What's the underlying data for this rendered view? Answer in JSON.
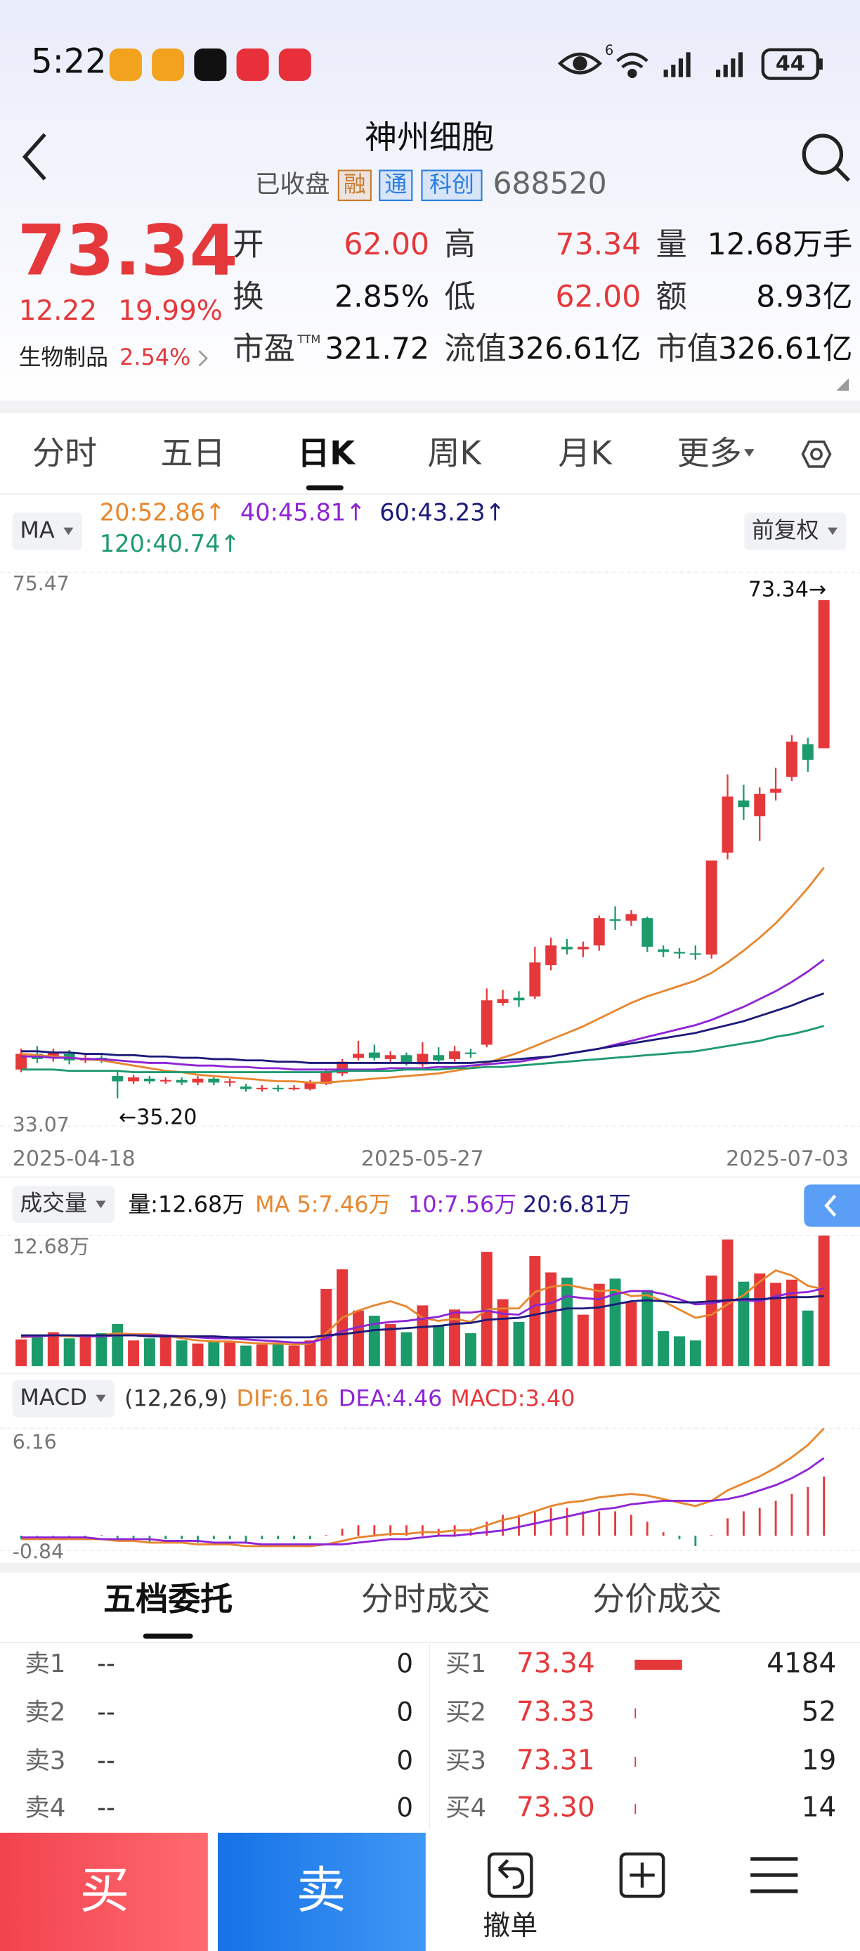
{
  "status_bar": {
    "time": "5:22",
    "network": "6",
    "battery": "44"
  },
  "header": {
    "title": "神州细胞",
    "status": "已收盘",
    "tags": [
      "融",
      "通",
      "科创"
    ],
    "code": "688520"
  },
  "quote": {
    "price": "73.34",
    "change": "12.22",
    "change_pct": "19.99%",
    "sector": "生物制品",
    "sector_pct": "2.54%",
    "fields": [
      {
        "label": "开",
        "value": "62.00",
        "color": "#e5383b"
      },
      {
        "label": "高",
        "value": "73.34",
        "color": "#e5383b"
      },
      {
        "label": "量",
        "value": "12.68万手",
        "color": "#111111"
      },
      {
        "label": "换",
        "value": "2.85%",
        "color": "#111111"
      },
      {
        "label": "低",
        "value": "62.00",
        "color": "#e5383b"
      },
      {
        "label": "额",
        "value": "8.93亿",
        "color": "#111111"
      },
      {
        "label": "市盈",
        "sup": "TTM",
        "value": "321.72",
        "color": "#111111"
      },
      {
        "label": "流值",
        "value": "326.61亿",
        "color": "#111111"
      },
      {
        "label": "市值",
        "value": "326.61亿",
        "color": "#111111"
      }
    ]
  },
  "tabs": [
    "分时",
    "五日",
    "日K",
    "周K",
    "月K",
    "更多"
  ],
  "kline": {
    "type": "candlestick",
    "selector": "MA",
    "adjust": "前复权",
    "categories": [
      "2025-04-18",
      null,
      null,
      null,
      null,
      null,
      null,
      null,
      null,
      null,
      null,
      null,
      null,
      null,
      null,
      null,
      null,
      null,
      null,
      null,
      null,
      null,
      null,
      null,
      null,
      "2025-05-27",
      null,
      null,
      null,
      null,
      null,
      null,
      null,
      null,
      null,
      null,
      null,
      null,
      null,
      null,
      null,
      null,
      null,
      null,
      null,
      null,
      null,
      null,
      null,
      null,
      "2025-07-03"
    ],
    "open": [
      37.4,
      38.6,
      38.4,
      38.6,
      38.1,
      38.3,
      36.9,
      36.5,
      36.7,
      36.5,
      36.6,
      36.4,
      36.7,
      36.4,
      36.1,
      35.9,
      36.0,
      35.9,
      35.9,
      36.3,
      37.1,
      38.3,
      38.7,
      38.2,
      38.5,
      37.8,
      38.5,
      38.2,
      38.7,
      39.3,
      42.5,
      42.9,
      43.0,
      45.4,
      46.8,
      46.6,
      46.9,
      48.9,
      48.8,
      49.0,
      46.6,
      46.4,
      46.3,
      46.2,
      54.0,
      58.0,
      56.8,
      58.6,
      59.8,
      62.3,
      62.0
    ],
    "close": [
      38.6,
      38.2,
      38.7,
      38.1,
      38.3,
      38.2,
      36.5,
      36.8,
      36.5,
      36.6,
      36.4,
      36.7,
      36.4,
      36.5,
      35.9,
      36.0,
      35.9,
      36.0,
      36.4,
      37.2,
      38.0,
      38.6,
      38.3,
      38.5,
      37.9,
      38.6,
      38.1,
      38.8,
      38.6,
      42.7,
      42.8,
      42.7,
      45.6,
      46.9,
      46.6,
      46.8,
      49.0,
      48.8,
      49.3,
      46.8,
      46.4,
      46.3,
      46.2,
      53.4,
      58.3,
      57.5,
      58.5,
      58.9,
      62.5,
      61.12,
      73.34
    ],
    "high": [
      39.0,
      39.2,
      39.0,
      38.9,
      38.6,
      38.5,
      37.3,
      37.0,
      36.9,
      36.8,
      36.8,
      36.9,
      36.8,
      36.7,
      36.3,
      36.2,
      36.2,
      36.2,
      36.6,
      37.4,
      38.2,
      39.6,
      39.3,
      38.8,
      38.7,
      39.5,
      39.1,
      39.2,
      39.0,
      43.6,
      43.5,
      43.4,
      46.8,
      47.5,
      47.4,
      47.2,
      49.2,
      49.9,
      49.6,
      49.1,
      46.9,
      46.7,
      46.9,
      53.4,
      60.0,
      59.2,
      59.0,
      60.5,
      63.0,
      62.8,
      73.34
    ],
    "low": [
      37.2,
      37.9,
      38.0,
      37.8,
      37.9,
      37.9,
      35.2,
      36.3,
      36.3,
      36.3,
      36.2,
      36.2,
      36.2,
      36.1,
      35.7,
      35.7,
      35.7,
      35.8,
      35.8,
      36.2,
      36.9,
      38.1,
      38.1,
      37.9,
      37.7,
      37.6,
      37.9,
      38.0,
      38.3,
      39.1,
      42.3,
      42.2,
      42.8,
      45.0,
      46.2,
      46.0,
      46.5,
      48.1,
      48.4,
      46.4,
      46.0,
      45.9,
      45.8,
      45.9,
      53.5,
      56.5,
      54.9,
      58.0,
      59.5,
      60.2,
      62.0
    ],
    "up_color": "#e5383b",
    "down_color": "#1b9a6a",
    "max_label": "73.34→",
    "min_label": "←35.20",
    "ylim": [
      33.07,
      75.47
    ],
    "yticks": [
      75.47,
      33.07
    ],
    "ma": [
      {
        "label": "20:52.86↑",
        "color": "#e8862e",
        "values": [
          38.6,
          38.5,
          38.4,
          38.3,
          38.2,
          38.1,
          37.9,
          37.7,
          37.5,
          37.3,
          37.2,
          37.0,
          36.9,
          36.8,
          36.7,
          36.6,
          36.5,
          36.5,
          36.4,
          36.4,
          36.5,
          36.6,
          36.7,
          36.8,
          36.9,
          37.0,
          37.1,
          37.3,
          37.5,
          37.9,
          38.3,
          38.7,
          39.2,
          39.7,
          40.2,
          40.7,
          41.3,
          41.9,
          42.5,
          43.0,
          43.4,
          43.8,
          44.2,
          44.8,
          45.6,
          46.5,
          47.5,
          48.6,
          49.9,
          51.3,
          52.86
        ]
      },
      {
        "label": "40:45.81↑",
        "color": "#8e24d6",
        "values": [
          38.4,
          38.4,
          38.3,
          38.3,
          38.2,
          38.2,
          38.1,
          38.0,
          37.9,
          37.9,
          37.8,
          37.7,
          37.7,
          37.6,
          37.6,
          37.5,
          37.5,
          37.4,
          37.4,
          37.4,
          37.4,
          37.4,
          37.4,
          37.5,
          37.5,
          37.5,
          37.6,
          37.6,
          37.7,
          37.8,
          37.9,
          38.0,
          38.2,
          38.4,
          38.6,
          38.8,
          39.0,
          39.3,
          39.6,
          39.9,
          40.2,
          40.5,
          40.8,
          41.2,
          41.7,
          42.2,
          42.8,
          43.4,
          44.1,
          44.9,
          45.81
        ]
      },
      {
        "label": "60:43.23↑",
        "color": "#1c1a7a",
        "values": [
          38.8,
          38.8,
          38.7,
          38.7,
          38.6,
          38.6,
          38.5,
          38.5,
          38.4,
          38.4,
          38.3,
          38.3,
          38.2,
          38.2,
          38.1,
          38.1,
          38.0,
          38.0,
          37.9,
          37.9,
          37.9,
          37.9,
          37.9,
          37.9,
          37.9,
          37.9,
          37.9,
          37.9,
          37.9,
          38.0,
          38.1,
          38.2,
          38.3,
          38.4,
          38.6,
          38.8,
          39.0,
          39.2,
          39.4,
          39.6,
          39.8,
          40.0,
          40.2,
          40.5,
          40.8,
          41.1,
          41.5,
          41.9,
          42.3,
          42.8,
          43.23
        ]
      },
      {
        "label": "120:40.74↑",
        "color": "#1e9a6e",
        "values": [
          37.4,
          37.4,
          37.4,
          37.3,
          37.3,
          37.3,
          37.3,
          37.2,
          37.2,
          37.2,
          37.2,
          37.2,
          37.2,
          37.2,
          37.2,
          37.2,
          37.2,
          37.2,
          37.2,
          37.2,
          37.3,
          37.3,
          37.3,
          37.3,
          37.4,
          37.4,
          37.4,
          37.5,
          37.5,
          37.6,
          37.6,
          37.7,
          37.8,
          37.9,
          38.0,
          38.1,
          38.2,
          38.3,
          38.4,
          38.5,
          38.6,
          38.7,
          38.8,
          39.0,
          39.2,
          39.4,
          39.6,
          39.9,
          40.1,
          40.4,
          40.74
        ]
      }
    ]
  },
  "volume": {
    "type": "bar",
    "selector": "成交量",
    "legend": "量:12.68万",
    "values": [
      2.6,
      2.9,
      3.3,
      2.7,
      3.1,
      3.2,
      4.1,
      2.5,
      2.7,
      2.8,
      2.5,
      2.2,
      2.4,
      2.3,
      2.0,
      2.1,
      2.2,
      2.0,
      2.5,
      7.5,
      9.4,
      5.4,
      4.9,
      4.1,
      3.3,
      5.9,
      4.0,
      5.5,
      3.2,
      11.1,
      6.5,
      4.3,
      10.7,
      9.1,
      8.6,
      5.0,
      8.0,
      8.5,
      6.2,
      7.4,
      3.4,
      2.9,
      2.5,
      8.8,
      12.3,
      8.2,
      9.0,
      8.1,
      8.4,
      5.4,
      12.68
    ],
    "ylim": [
      0,
      12.68
    ],
    "yticks": [
      {
        "value": 12.68,
        "label": "12.68万"
      }
    ],
    "ma": [
      {
        "label": "MA 5:7.46万",
        "color": "#e8862e",
        "values": [
          2.8,
          2.9,
          3.0,
          2.9,
          2.9,
          3.0,
          3.2,
          3.1,
          3.1,
          3.0,
          2.7,
          2.5,
          2.4,
          2.4,
          2.3,
          2.2,
          2.2,
          2.1,
          2.2,
          3.2,
          4.7,
          5.4,
          5.9,
          6.3,
          5.8,
          4.7,
          4.4,
          4.6,
          4.3,
          5.5,
          5.6,
          5.6,
          7.2,
          7.7,
          7.9,
          7.6,
          7.3,
          7.4,
          6.8,
          6.9,
          6.3,
          5.5,
          4.7,
          5.0,
          6.0,
          6.9,
          8.2,
          9.3,
          8.8,
          7.8,
          7.46
        ]
      },
      {
        "label": "10:7.56万",
        "color": "#8e24d6",
        "values": [
          2.9,
          2.9,
          3.0,
          3.0,
          2.9,
          2.9,
          3.0,
          3.0,
          3.0,
          3.0,
          2.9,
          2.8,
          2.7,
          2.7,
          2.6,
          2.5,
          2.4,
          2.3,
          2.3,
          2.7,
          3.4,
          3.8,
          4.1,
          4.3,
          4.4,
          4.6,
          4.8,
          5.2,
          5.2,
          5.4,
          5.1,
          5.0,
          5.9,
          6.1,
          6.8,
          6.6,
          6.5,
          7.0,
          7.3,
          7.3,
          7.0,
          6.5,
          6.0,
          6.1,
          6.4,
          6.4,
          6.3,
          6.8,
          7.1,
          7.2,
          7.56
        ]
      },
      {
        "label": "20:6.81万",
        "color": "#1c1a7a",
        "values": [
          3.0,
          3.0,
          3.0,
          3.0,
          3.0,
          3.0,
          3.0,
          3.0,
          2.9,
          2.9,
          2.9,
          2.9,
          2.9,
          2.8,
          2.8,
          2.8,
          2.8,
          2.8,
          2.8,
          3.0,
          3.1,
          3.3,
          3.5,
          3.6,
          3.7,
          3.8,
          3.9,
          4.1,
          4.2,
          4.5,
          4.6,
          4.7,
          5.0,
          5.3,
          5.6,
          5.6,
          5.7,
          6.0,
          6.3,
          6.4,
          6.3,
          6.2,
          6.2,
          6.3,
          6.4,
          6.5,
          6.5,
          6.6,
          6.7,
          6.7,
          6.81
        ]
      }
    ]
  },
  "macd": {
    "type": "macd",
    "selector": "MACD",
    "params": "(12,26,9)",
    "ylim": [
      -0.84,
      6.16
    ],
    "yticks": [
      6.16,
      -0.84
    ],
    "dif": {
      "label": "DIF:6.16",
      "color": "#e8862e",
      "values": [
        -0.2,
        -0.2,
        -0.2,
        -0.2,
        -0.2,
        -0.2,
        -0.3,
        -0.3,
        -0.4,
        -0.4,
        -0.4,
        -0.5,
        -0.5,
        -0.5,
        -0.6,
        -0.6,
        -0.6,
        -0.6,
        -0.6,
        -0.5,
        -0.3,
        -0.1,
        0.0,
        0.1,
        0.1,
        0.2,
        0.2,
        0.3,
        0.3,
        0.6,
        0.9,
        1.1,
        1.4,
        1.7,
        1.9,
        2.0,
        2.2,
        2.3,
        2.4,
        2.3,
        2.1,
        1.9,
        1.7,
        2.0,
        2.6,
        3.0,
        3.4,
        3.9,
        4.5,
        5.2,
        6.16
      ]
    },
    "dea": {
      "label": "DEA:4.46",
      "color": "#8e24d6",
      "values": [
        -0.1,
        -0.1,
        -0.1,
        -0.1,
        -0.1,
        -0.2,
        -0.2,
        -0.2,
        -0.2,
        -0.3,
        -0.3,
        -0.3,
        -0.4,
        -0.4,
        -0.4,
        -0.5,
        -0.5,
        -0.5,
        -0.5,
        -0.5,
        -0.5,
        -0.4,
        -0.3,
        -0.2,
        -0.2,
        -0.1,
        0.0,
        0.0,
        0.1,
        0.2,
        0.3,
        0.5,
        0.7,
        0.9,
        1.1,
        1.3,
        1.5,
        1.6,
        1.8,
        1.9,
        2.0,
        2.0,
        2.0,
        2.0,
        2.1,
        2.3,
        2.6,
        2.9,
        3.3,
        3.8,
        4.46
      ]
    },
    "bars": {
      "label": "MACD:3.40",
      "color": "#e5383b",
      "values": [
        -0.2,
        -0.2,
        -0.2,
        -0.2,
        -0.2,
        0,
        -0.2,
        -0.2,
        -0.4,
        -0.2,
        -0.2,
        -0.4,
        -0.2,
        -0.2,
        -0.4,
        -0.2,
        -0.2,
        -0.2,
        -0.2,
        0,
        0.4,
        0.6,
        0.6,
        0.6,
        0.6,
        0.6,
        0.4,
        0.6,
        0.4,
        0.8,
        1.2,
        1.2,
        1.4,
        1.6,
        1.6,
        1.4,
        1.4,
        1.4,
        1.2,
        0.8,
        0.2,
        -0.2,
        -0.6,
        0,
        1.0,
        1.4,
        1.6,
        2.0,
        2.4,
        2.8,
        3.4
      ]
    }
  },
  "order_book": {
    "tabs": [
      "五档委托",
      "分时成交",
      "分价成交"
    ],
    "sell": [
      {
        "label": "卖1",
        "price": "--",
        "volume": 0
      },
      {
        "label": "卖2",
        "price": "--",
        "volume": 0
      },
      {
        "label": "卖3",
        "price": "--",
        "volume": 0
      },
      {
        "label": "卖4",
        "price": "--",
        "volume": 0
      }
    ],
    "buy": [
      {
        "label": "买1",
        "price": "73.34",
        "volume": 4184
      },
      {
        "label": "买2",
        "price": "73.33",
        "volume": 52
      },
      {
        "label": "买3",
        "price": "73.31",
        "volume": 19
      },
      {
        "label": "买4",
        "price": "73.30",
        "volume": 14
      }
    ]
  },
  "bottom_bar": {
    "buy": "买",
    "sell": "卖",
    "cancel": "撤单"
  }
}
